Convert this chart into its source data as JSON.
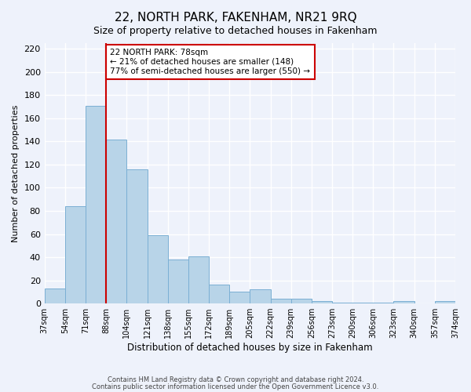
{
  "title": "22, NORTH PARK, FAKENHAM, NR21 9RQ",
  "subtitle": "Size of property relative to detached houses in Fakenham",
  "xlabel": "Distribution of detached houses by size in Fakenham",
  "ylabel": "Number of detached properties",
  "bar_values": [
    13,
    84,
    171,
    142,
    116,
    59,
    38,
    41,
    16,
    10,
    12,
    4,
    4,
    2,
    1,
    1,
    1,
    2,
    0,
    2
  ],
  "bar_labels": [
    "37sqm",
    "54sqm",
    "71sqm",
    "88sqm",
    "104sqm",
    "121sqm",
    "138sqm",
    "155sqm",
    "172sqm",
    "189sqm",
    "205sqm",
    "222sqm",
    "239sqm",
    "256sqm",
    "273sqm",
    "290sqm",
    "306sqm",
    "323sqm",
    "340sqm",
    "357sqm"
  ],
  "x_extra_label": "374sqm",
  "bar_color": "#b8d4e8",
  "bar_edge_color": "#7bafd4",
  "vline_color": "#cc0000",
  "ylim": [
    0,
    225
  ],
  "yticks": [
    0,
    20,
    40,
    60,
    80,
    100,
    120,
    140,
    160,
    180,
    200,
    220
  ],
  "annotation_title": "22 NORTH PARK: 78sqm",
  "annotation_line1": "← 21% of detached houses are smaller (148)",
  "annotation_line2": "77% of semi-detached houses are larger (550) →",
  "annotation_box_color": "#ffffff",
  "annotation_box_edge": "#cc0000",
  "footer_line1": "Contains HM Land Registry data © Crown copyright and database right 2024.",
  "footer_line2": "Contains public sector information licensed under the Open Government Licence v3.0.",
  "background_color": "#eef2fb",
  "plot_bg_color": "#eef2fb",
  "grid_color": "#ffffff"
}
